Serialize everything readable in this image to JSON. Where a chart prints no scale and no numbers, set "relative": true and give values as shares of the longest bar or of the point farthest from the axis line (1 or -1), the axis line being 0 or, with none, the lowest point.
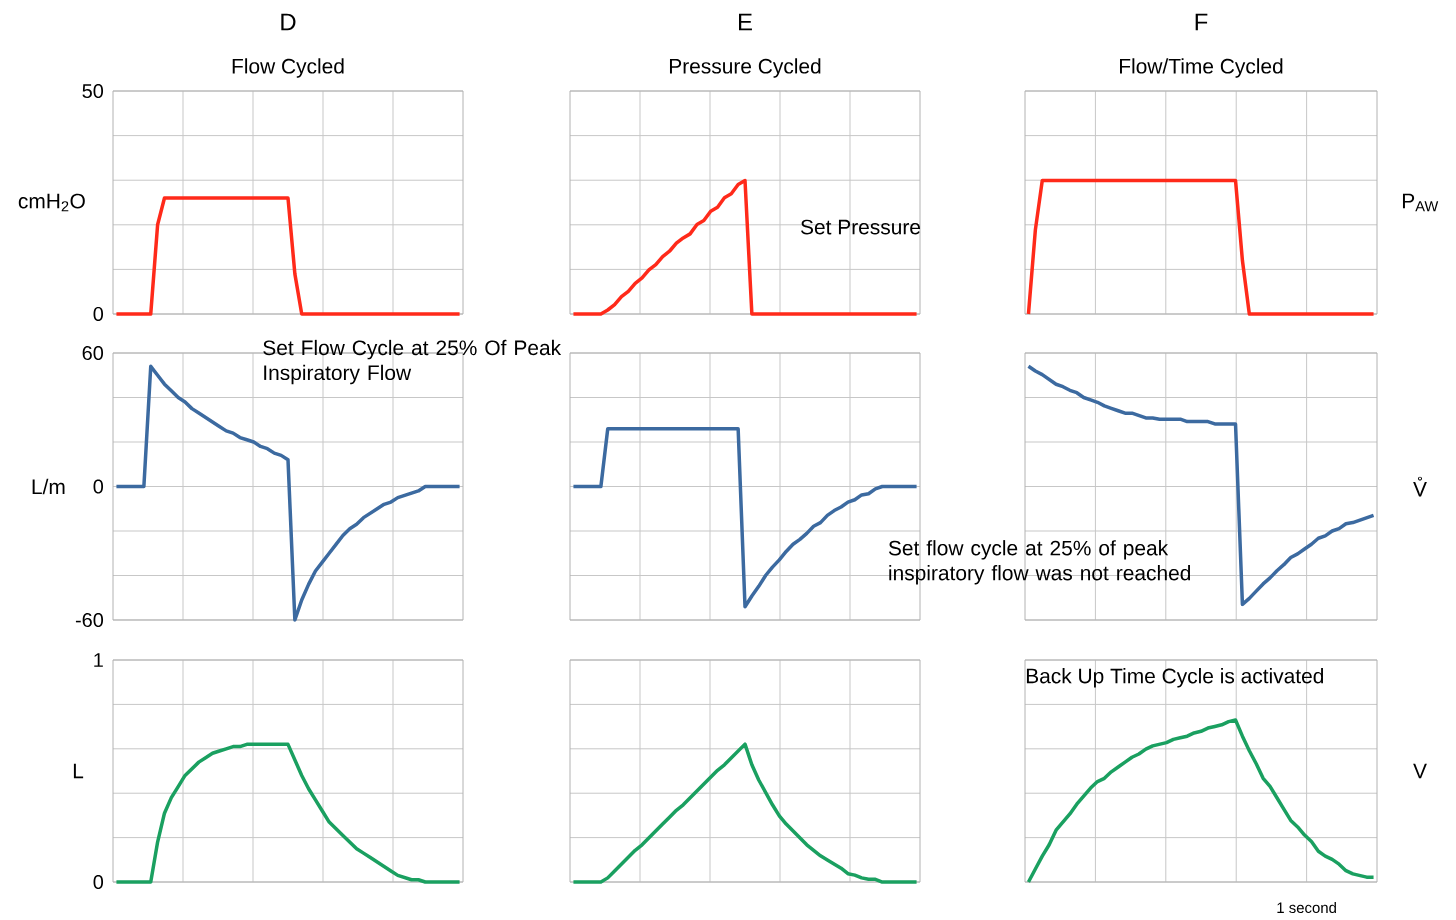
{
  "chart_data": [
    {
      "type": "line",
      "title": "D",
      "subtitle": "Flow Cycled",
      "ylabel": "cmH$_{2}$O",
      "categories": [
        null,
        null,
        null,
        null,
        null,
        null,
        null,
        null,
        null,
        null,
        null,
        null,
        null,
        null,
        null,
        null,
        null,
        null,
        null,
        null,
        null,
        null,
        null,
        null,
        null,
        null,
        null,
        null,
        null,
        null,
        null,
        null,
        null,
        null,
        null,
        null,
        null,
        null,
        null,
        null,
        null,
        null,
        null,
        null,
        null,
        null,
        null,
        null,
        null,
        null,
        null
      ],
      "series": [
        {
          "color": "#ff2a1a",
          "values": [
            0,
            0,
            0,
            0,
            0,
            0,
            20,
            26,
            26,
            26,
            26,
            26,
            26,
            26,
            26,
            26,
            26,
            26,
            26,
            26,
            26,
            26,
            26,
            26,
            26,
            26,
            9,
            0,
            0,
            0,
            0,
            0,
            0,
            0,
            0,
            0,
            0,
            0,
            0,
            0,
            0,
            0,
            0,
            0,
            0,
            0,
            0,
            0,
            0,
            0,
            0
          ]
        }
      ],
      "ylim": [
        0,
        50
      ],
      "yticks": [
        0,
        {
          "value": 10,
          "label": null
        },
        {
          "value": 20,
          "label": null
        },
        {
          "value": 30,
          "label": null
        },
        {
          "value": 40,
          "label": null
        },
        50
      ],
      "grid": true,
      "tick_labels": "y"
    },
    {
      "type": "line",
      "title": "E",
      "subtitle": "Pressure Cycled",
      "categories": [
        null,
        null,
        null,
        null,
        null,
        null,
        null,
        null,
        null,
        null,
        null,
        null,
        null,
        null,
        null,
        null,
        null,
        null,
        null,
        null,
        null,
        null,
        null,
        null,
        null,
        null,
        null,
        null,
        null,
        null,
        null,
        null,
        null,
        null,
        null,
        null,
        null,
        null,
        null,
        null,
        null,
        null,
        null,
        null,
        null,
        null,
        null,
        null,
        null,
        null,
        null
      ],
      "series": [
        {
          "color": "#ff2a1a",
          "values": [
            0,
            0,
            0,
            0,
            0,
            0.03,
            0.07,
            0.13,
            0.17,
            0.23,
            0.27,
            0.33,
            0.37,
            0.43,
            0.47,
            0.53,
            0.57,
            0.6,
            0.67,
            0.7,
            0.77,
            0.8,
            0.87,
            0.9,
            0.97,
            1,
            0,
            0,
            0,
            0,
            0,
            0,
            0,
            0,
            0,
            0,
            0,
            0,
            0,
            0,
            0,
            0,
            0,
            0,
            0,
            0,
            0,
            0,
            0,
            0,
            0
          ]
        }
      ],
      "relative": true,
      "grid": true,
      "annotations": [
        "Set Pressure"
      ]
    },
    {
      "type": "line",
      "title": "F",
      "subtitle": "Flow/Time Cycled",
      "y2label": "P$_{AW}$",
      "categories": [
        null,
        null,
        null,
        null,
        null,
        null,
        null,
        null,
        null,
        null,
        null,
        null,
        null,
        null,
        null,
        null,
        null,
        null,
        null,
        null,
        null,
        null,
        null,
        null,
        null,
        null,
        null,
        null,
        null,
        null,
        null,
        null,
        null,
        null,
        null,
        null,
        null,
        null,
        null,
        null,
        null,
        null,
        null,
        null,
        null,
        null,
        null,
        null,
        null,
        null,
        null
      ],
      "series": [
        {
          "color": "#ff2a1a",
          "values": [
            0,
            0.63,
            1,
            1,
            1,
            1,
            1,
            1,
            1,
            1,
            1,
            1,
            1,
            1,
            1,
            1,
            1,
            1,
            1,
            1,
            1,
            1,
            1,
            1,
            1,
            1,
            1,
            1,
            1,
            1,
            1,
            0.4,
            0,
            0,
            0,
            0,
            0,
            0,
            0,
            0,
            0,
            0,
            0,
            0,
            0,
            0,
            0,
            0,
            0,
            0,
            0
          ]
        }
      ],
      "relative": true,
      "grid": true
    },
    {
      "type": "line",
      "ylabel": "L/m",
      "categories": [
        null,
        null,
        null,
        null,
        null,
        null,
        null,
        null,
        null,
        null,
        null,
        null,
        null,
        null,
        null,
        null,
        null,
        null,
        null,
        null,
        null,
        null,
        null,
        null,
        null,
        null,
        null,
        null,
        null,
        null,
        null,
        null,
        null,
        null,
        null,
        null,
        null,
        null,
        null,
        null,
        null,
        null,
        null,
        null,
        null,
        null,
        null,
        null,
        null,
        null,
        null
      ],
      "series": [
        {
          "color": "#3c6aa0",
          "values": [
            0,
            0,
            0,
            0,
            0,
            54,
            50,
            46,
            43,
            40,
            38,
            35,
            33,
            31,
            29,
            27,
            25,
            24,
            22,
            21,
            20,
            18,
            17,
            15,
            14,
            12,
            -60,
            -51,
            -44,
            -38,
            -34,
            -30,
            -26,
            -22,
            -19,
            -17,
            -14,
            -12,
            -10,
            -8,
            -7,
            -5,
            -4,
            -3,
            -2,
            0,
            0,
            0,
            0,
            0,
            0
          ]
        }
      ],
      "ylim": [
        -60,
        60
      ],
      "yticks": [
        -60,
        {
          "value": -40,
          "label": null
        },
        {
          "value": -20,
          "label": null
        },
        0,
        {
          "value": 20,
          "label": null
        },
        {
          "value": 40,
          "label": null
        },
        60
      ],
      "grid": true,
      "tick_labels": "y",
      "annotations": [
        "Set Flow Cycle at 25% Of Peak Inspiratory Flow"
      ]
    },
    {
      "type": "line",
      "categories": [
        null,
        null,
        null,
        null,
        null,
        null,
        null,
        null,
        null,
        null,
        null,
        null,
        null,
        null,
        null,
        null,
        null,
        null,
        null,
        null,
        null,
        null,
        null,
        null,
        null,
        null,
        null,
        null,
        null,
        null,
        null,
        null,
        null,
        null,
        null,
        null,
        null,
        null,
        null,
        null,
        null,
        null,
        null,
        null,
        null,
        null,
        null,
        null,
        null,
        null,
        null
      ],
      "series": [
        {
          "color": "#3c6aa0",
          "values": [
            0,
            0,
            0,
            0,
            0,
            0.48,
            0.48,
            0.48,
            0.48,
            0.48,
            0.48,
            0.48,
            0.48,
            0.48,
            0.48,
            0.48,
            0.48,
            0.48,
            0.48,
            0.48,
            0.48,
            0.48,
            0.48,
            0.48,
            0.48,
            -1,
            -0.91,
            -0.83,
            -0.74,
            -0.67,
            -0.61,
            -0.54,
            -0.48,
            -0.44,
            -0.39,
            -0.33,
            -0.3,
            -0.24,
            -0.2,
            -0.17,
            -0.13,
            -0.11,
            -0.07,
            -0.06,
            -0.02,
            0,
            0,
            0,
            0,
            0,
            0
          ]
        }
      ],
      "relative": true,
      "grid": true
    },
    {
      "type": "line",
      "y2label": "V̊",
      "categories": [
        null,
        null,
        null,
        null,
        null,
        null,
        null,
        null,
        null,
        null,
        null,
        null,
        null,
        null,
        null,
        null,
        null,
        null,
        null,
        null,
        null,
        null,
        null,
        null,
        null,
        null,
        null,
        null,
        null,
        null,
        null,
        null,
        null,
        null,
        null,
        null,
        null,
        null,
        null,
        null,
        null,
        null,
        null,
        null,
        null,
        null,
        null,
        null,
        null,
        null,
        null
      ],
      "series": [
        {
          "color": "#3c6aa0",
          "values": [
            1,
            0.96,
            0.93,
            0.89,
            0.85,
            0.83,
            0.8,
            0.78,
            0.74,
            0.72,
            0.7,
            0.67,
            0.65,
            0.63,
            0.61,
            0.61,
            0.59,
            0.57,
            0.57,
            0.56,
            0.56,
            0.56,
            0.56,
            0.54,
            0.54,
            0.54,
            0.54,
            0.52,
            0.52,
            0.52,
            0.52,
            -0.98,
            -0.93,
            -0.87,
            -0.81,
            -0.76,
            -0.7,
            -0.65,
            -0.59,
            -0.56,
            -0.52,
            -0.48,
            -0.43,
            -0.41,
            -0.37,
            -0.35,
            -0.31,
            -0.3,
            -0.28,
            -0.26,
            -0.24
          ]
        }
      ],
      "relative": true,
      "grid": true,
      "annotations": [
        "Set flow cycle at 25% of peak inspiratory flow was not reached"
      ]
    },
    {
      "type": "line",
      "ylabel": "L",
      "categories": [
        null,
        null,
        null,
        null,
        null,
        null,
        null,
        null,
        null,
        null,
        null,
        null,
        null,
        null,
        null,
        null,
        null,
        null,
        null,
        null,
        null,
        null,
        null,
        null,
        null,
        null,
        null,
        null,
        null,
        null,
        null,
        null,
        null,
        null,
        null,
        null,
        null,
        null,
        null,
        null,
        null,
        null,
        null,
        null,
        null,
        null,
        null,
        null,
        null,
        null,
        null
      ],
      "series": [
        {
          "color": "#1aa060",
          "values": [
            0,
            0,
            0,
            0,
            0,
            0,
            0.18,
            0.31,
            0.38,
            0.43,
            0.48,
            0.51,
            0.54,
            0.56,
            0.58,
            0.59,
            0.6,
            0.61,
            0.61,
            0.62,
            0.62,
            0.62,
            0.62,
            0.62,
            0.62,
            0.62,
            0.55,
            0.48,
            0.42,
            0.37,
            0.32,
            0.27,
            0.24,
            0.21,
            0.18,
            0.15,
            0.13,
            0.11,
            0.09,
            0.07,
            0.05,
            0.03,
            0.02,
            0.01,
            0.01,
            0,
            0,
            0,
            0,
            0,
            0
          ]
        }
      ],
      "ylim": [
        0,
        1
      ],
      "yticks": [
        0,
        {
          "value": 0.2,
          "label": null
        },
        {
          "value": 0.4,
          "label": null
        },
        {
          "value": 0.6,
          "label": null
        },
        {
          "value": 0.8,
          "label": null
        },
        1
      ],
      "grid": true,
      "tick_labels": "y"
    },
    {
      "type": "line",
      "categories": [
        null,
        null,
        null,
        null,
        null,
        null,
        null,
        null,
        null,
        null,
        null,
        null,
        null,
        null,
        null,
        null,
        null,
        null,
        null,
        null,
        null,
        null,
        null,
        null,
        null,
        null,
        null,
        null,
        null,
        null,
        null,
        null,
        null,
        null,
        null,
        null,
        null,
        null,
        null,
        null,
        null,
        null,
        null,
        null,
        null,
        null,
        null,
        null,
        null,
        null,
        null
      ],
      "series": [
        {
          "color": "#1aa060",
          "values": [
            0,
            0,
            0,
            0,
            0,
            0.03,
            0.08,
            0.13,
            0.18,
            0.23,
            0.27,
            0.32,
            0.37,
            0.42,
            0.47,
            0.52,
            0.56,
            0.61,
            0.66,
            0.71,
            0.76,
            0.81,
            0.85,
            0.9,
            0.95,
            1,
            0.85,
            0.74,
            0.65,
            0.56,
            0.48,
            0.42,
            0.37,
            0.32,
            0.27,
            0.23,
            0.19,
            0.16,
            0.13,
            0.1,
            0.06,
            0.05,
            0.03,
            0.02,
            0.02,
            0,
            0,
            0,
            0,
            0,
            0
          ]
        }
      ],
      "relative": true,
      "grid": true
    },
    {
      "type": "line",
      "y2label": "V",
      "categories": [
        null,
        null,
        null,
        null,
        null,
        null,
        null,
        null,
        null,
        null,
        null,
        null,
        null,
        null,
        null,
        null,
        null,
        null,
        null,
        null,
        null,
        null,
        null,
        null,
        null,
        null,
        null,
        null,
        null,
        null,
        null,
        null,
        null,
        null,
        null,
        null,
        null,
        null,
        null,
        null,
        null,
        null,
        null,
        null,
        null,
        null,
        null,
        null,
        null,
        null,
        null
      ],
      "series": [
        {
          "color": "#1aa060",
          "values": [
            0,
            0.08,
            0.16,
            0.23,
            0.32,
            0.37,
            0.42,
            0.48,
            0.53,
            0.58,
            0.62,
            0.64,
            0.68,
            0.71,
            0.74,
            0.77,
            0.79,
            0.82,
            0.84,
            0.85,
            0.86,
            0.88,
            0.89,
            0.9,
            0.92,
            0.93,
            0.95,
            0.96,
            0.97,
            0.99,
            1,
            0.9,
            0.81,
            0.73,
            0.64,
            0.59,
            0.52,
            0.45,
            0.38,
            0.34,
            0.29,
            0.25,
            0.19,
            0.16,
            0.14,
            0.11,
            0.07,
            0.05,
            0.04,
            0.03,
            0.03
          ]
        }
      ],
      "relative": true,
      "grid": true,
      "annotations": [
        "Back Up Time Cycle is activated",
        "1 second"
      ]
    }
  ]
}
